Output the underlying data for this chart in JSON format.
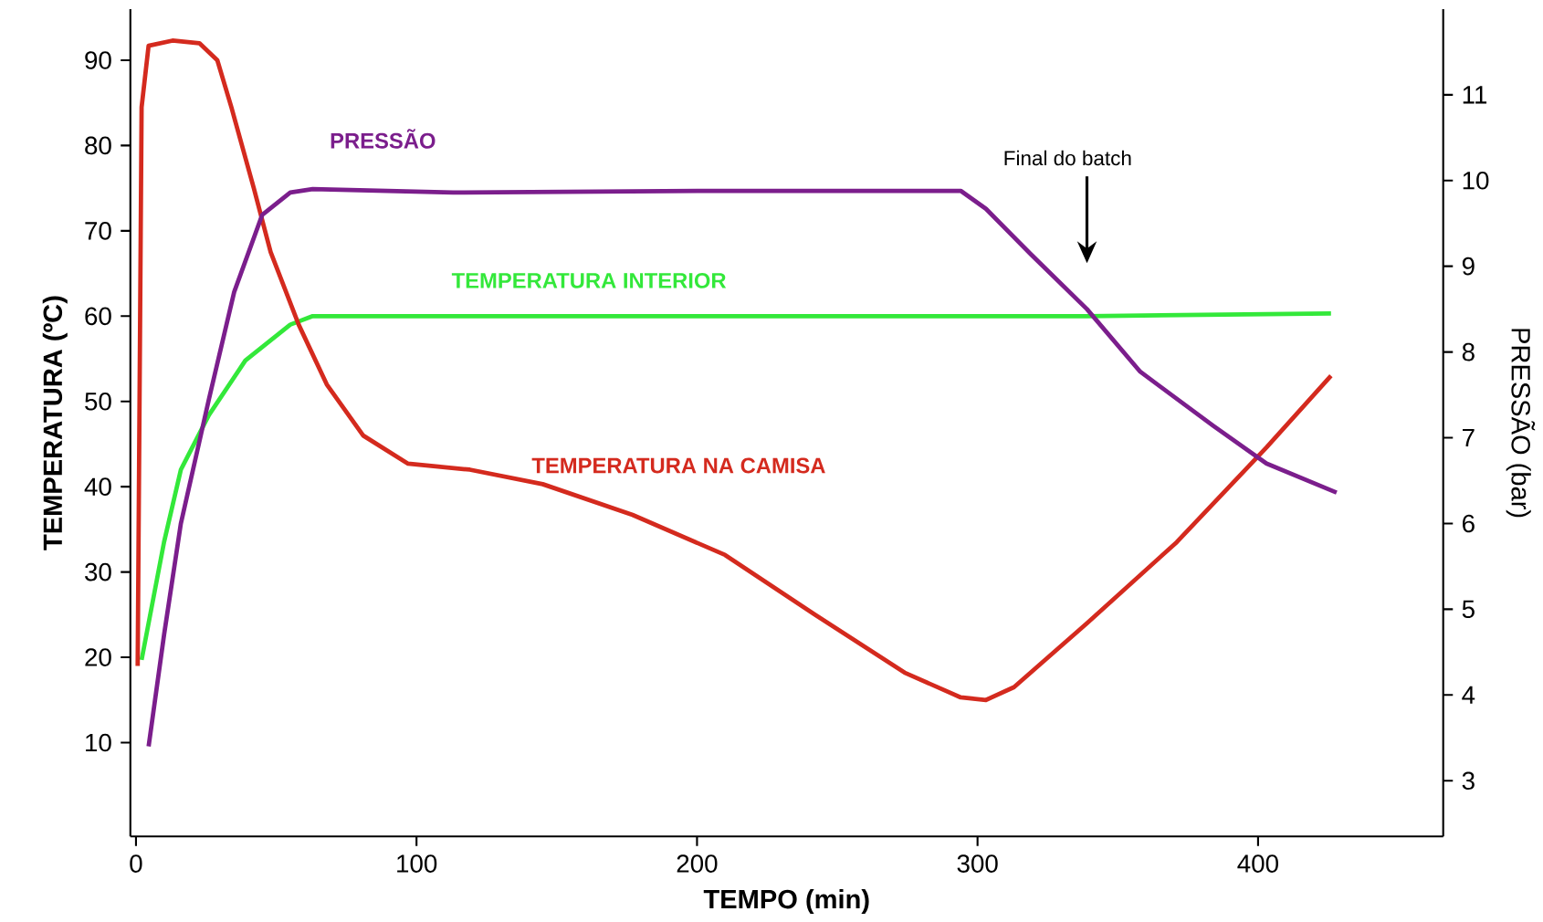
{
  "chart_data": {
    "type": "line",
    "xlabel": "TEMPO (min)",
    "ylabel": "TEMPERATURA (ºC)",
    "y2label": "PRESSÃO (bar)",
    "xlim": [
      -2,
      466
    ],
    "xticks": [
      0,
      100,
      200,
      300,
      400
    ],
    "ylim": [
      -1,
      96
    ],
    "yticks": [
      10,
      20,
      30,
      40,
      50,
      60,
      70,
      80,
      90
    ],
    "y2lim": [
      2.35,
      12
    ],
    "y2ticks": [
      3,
      4,
      5,
      6,
      7,
      8,
      9,
      10,
      11
    ],
    "series": [
      {
        "name": "PRESSÃO",
        "color": "#7b1e8c",
        "axis": "y2",
        "x": [
          4.5,
          10,
          16,
          26,
          35,
          45,
          55,
          63,
          113,
          210,
          294,
          303,
          319,
          339,
          358,
          384,
          403,
          428
        ],
        "values": [
          3.4,
          4.7,
          6.0,
          7.45,
          8.7,
          9.6,
          9.86,
          9.9,
          9.86,
          9.88,
          9.88,
          9.67,
          9.14,
          8.5,
          7.77,
          7.14,
          6.7,
          6.36
        ]
      },
      {
        "name": "TEMPERATURA INTERIOR",
        "color": "#33e83a",
        "x": [
          2,
          10,
          16,
          26,
          39,
          55,
          63,
          113,
          210,
          339,
          426
        ],
        "values": [
          19.7,
          33.5,
          42,
          48.4,
          54.8,
          59,
          60,
          60,
          60,
          60,
          60.3
        ]
      },
      {
        "name": "TEMPERATURA NA CAMISA",
        "color": "#d42a1e",
        "x": [
          0.6,
          2,
          4.5,
          13,
          22.6,
          29,
          34,
          42,
          48,
          58,
          68,
          81,
          97,
          119,
          145,
          177,
          210,
          242,
          274,
          294,
          303,
          313,
          339,
          371,
          403,
          426
        ],
        "values": [
          19,
          84.5,
          91.7,
          92.3,
          92,
          90,
          84.5,
          75,
          67.5,
          59,
          52,
          46,
          42.7,
          42,
          40.3,
          36.7,
          32,
          25,
          18.2,
          15.3,
          15,
          16.5,
          24,
          33.5,
          44.6,
          53
        ]
      }
    ],
    "annotations": [
      "Final do batch"
    ]
  }
}
